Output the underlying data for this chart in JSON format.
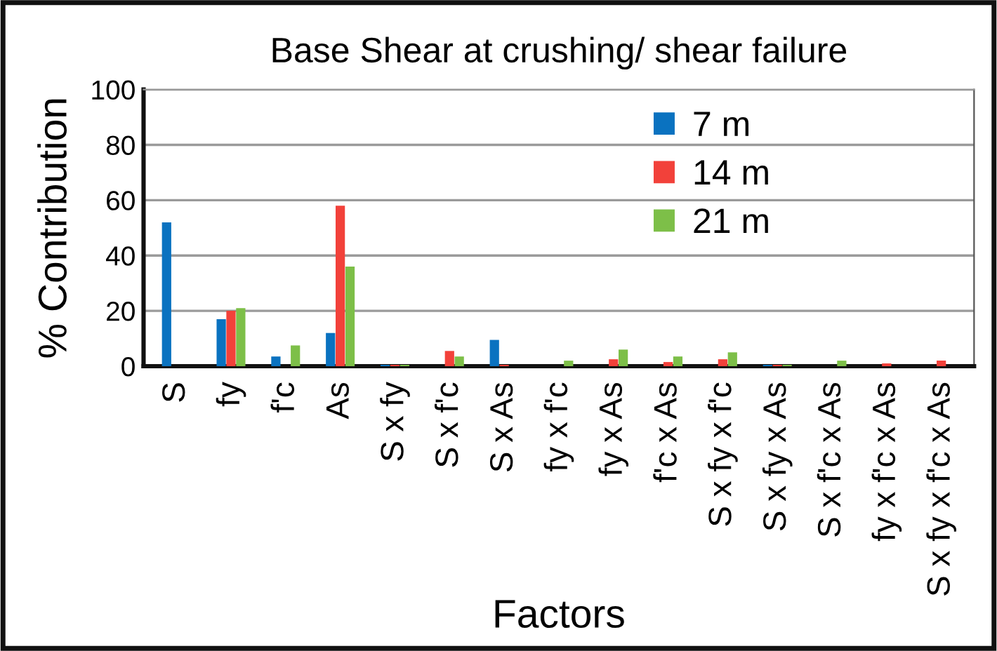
{
  "chart_data": {
    "type": "bar",
    "title": "Base Shear at crushing/ shear failure",
    "xlabel": "Factors",
    "ylabel": "% Contribution",
    "categories": [
      "S",
      "fy",
      "f'c",
      "As",
      "S x fy",
      "S x f'c",
      "S x As",
      "fy x f'c",
      "fy x As",
      "f'c x As",
      "S x fy x f'c",
      "S x fy x As",
      "S x f'c x As",
      "fy x f'c x As",
      "S x fy x f'c x As"
    ],
    "series": [
      {
        "name": "7 m",
        "color": "#0a72c0",
        "values": [
          52,
          17,
          3.5,
          12,
          0.5,
          0,
          9.5,
          0,
          0,
          0,
          0,
          0.5,
          0,
          0,
          0
        ]
      },
      {
        "name": "14 m",
        "color": "#f2413a",
        "values": [
          0,
          20,
          0,
          58,
          0.5,
          5.5,
          0.5,
          0,
          2.5,
          1.5,
          2.5,
          0.5,
          0,
          1,
          2
        ]
      },
      {
        "name": "21 m",
        "color": "#7dbf48",
        "values": [
          0,
          21,
          7.5,
          36,
          0.5,
          3.5,
          0,
          2,
          6,
          3.5,
          5,
          0.5,
          2,
          0,
          0
        ]
      }
    ],
    "ylim": [
      0,
      100
    ],
    "yticks": [
      0,
      20,
      40,
      60,
      80,
      100
    ],
    "grid": "y",
    "legend": "top right"
  }
}
